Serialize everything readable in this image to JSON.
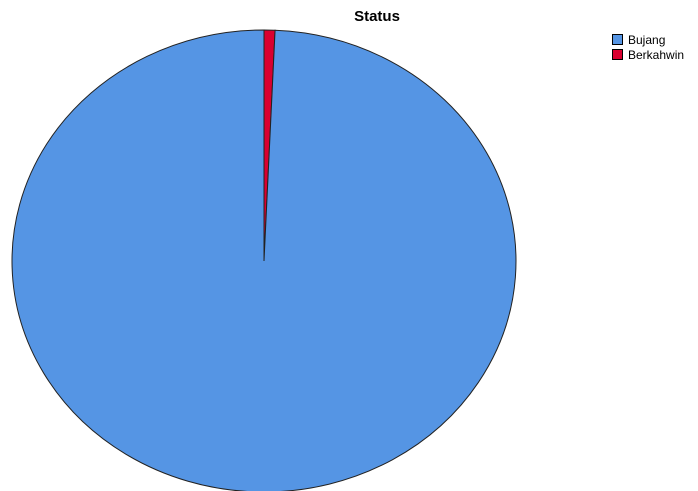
{
  "chart_data": {
    "type": "pie",
    "title": "Status",
    "categories": [
      "Bujang",
      "Berkahwin"
    ],
    "values": [
      99.3,
      0.7
    ],
    "colors": [
      "#5595e4",
      "#d90030"
    ],
    "legend_placement": "top-right"
  }
}
